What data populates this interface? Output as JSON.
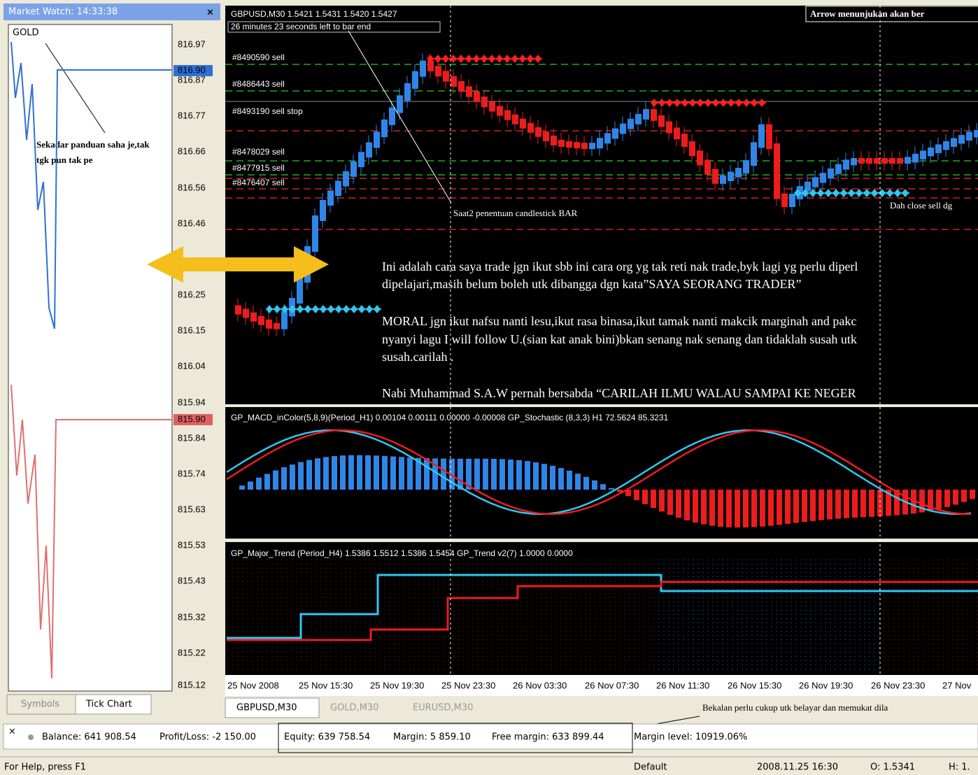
{
  "market_watch": {
    "title": "Market Watch: 14:33:38",
    "symbol": "GOLD",
    "prices": [
      "816.97",
      "816.90",
      "816.87",
      "816.77",
      "816.66",
      "816.56",
      "816.46",
      "816.25",
      "816.15",
      "816.04",
      "815.94",
      "815.90",
      "815.84",
      "815.74",
      "815.63",
      "815.53",
      "815.43",
      "815.32",
      "815.22",
      "815.12"
    ],
    "annotation": [
      "Sekadar panduan saha je,tak",
      "tgk pun tak pe"
    ],
    "tabs": [
      "Symbols",
      "Tick Chart"
    ]
  },
  "main_chart": {
    "header": "GBPUSD,M30  1.5421 1.5431 1.5420 1.5427",
    "timer": "26 minutes 23 seconds left to bar end",
    "note_top": "Arrow menunjukan akan ber",
    "orders": [
      "#8490590 sell",
      "#8486443 sell",
      "#8493190 sell stop",
      "#8478029 sell",
      "#8477915 sell",
      "#8476407 sell"
    ],
    "labels": [
      "Saat2 penentuan candlestick BAR",
      "Dah close sell dg"
    ],
    "paragraph": [
      "Ini adalah cara saya trade jgn ikut sbb ini cara org yg tak reti nak trade,byk lagi yg perlu diperl",
      "dipelajari,masih belum boleh utk dibangga dgn kata”SAYA SEORANG TRADER”",
      "MORAL jgn ikut nafsu nanti lesu,ikut rasa binasa,ikut tamak nanti makcik marginah and pakc",
      "nyanyi lagu I will follow U.(sian kat anak bini)bkan senang nak senang dan tidaklah susah utk",
      "susah.carilah .",
      "Nabi Muhammad S.A.W  pernah bersabda “CARILAH ILMU WALAU SAMPAI KE NEGER"
    ]
  },
  "indicators": [
    "GP_MACD_inColor(5,8,9)(Period_H1) 0.00104 0.00111 0.00000 -0.00008  GP_Stochastic (8,3,3) H1 72.5624 85.3231",
    "GP_Major_Trend (Period_H4) 1.5386 1.5512 1.5386 1.5454  GP_Trend v2(7) 1.0000 0.0000"
  ],
  "time_axis": [
    "25 Nov 2008",
    "25 Nov 15:30",
    "25 Nov 19:30",
    "25 Nov 23:30",
    "26 Nov 03:30",
    "26 Nov 07:30",
    "26 Nov 11:30",
    "26 Nov 15:30",
    "26 Nov 19:30",
    "26 Nov 23:30",
    "27 Nov"
  ],
  "chart_tabs": [
    "GBPUSD,M30",
    "GOLD,M30",
    "EURUSD,M30"
  ],
  "tab_note": "Bekalan perlu cukup utk belayar dan memukat dila",
  "account": {
    "balance": "Balance: 641 908.54",
    "profit_loss": "Profit/Loss: -2 150.00",
    "equity": "Equity: 639 758.54",
    "margin": "Margin: 5 859.10",
    "free_margin": "Free margin: 633 899.44",
    "margin_level": "Margin level: 10919.06%"
  },
  "status": [
    "For Help, press F1",
    "Default",
    "2008.11.25 16:30",
    "O: 1.5341",
    "H: 1."
  ]
}
